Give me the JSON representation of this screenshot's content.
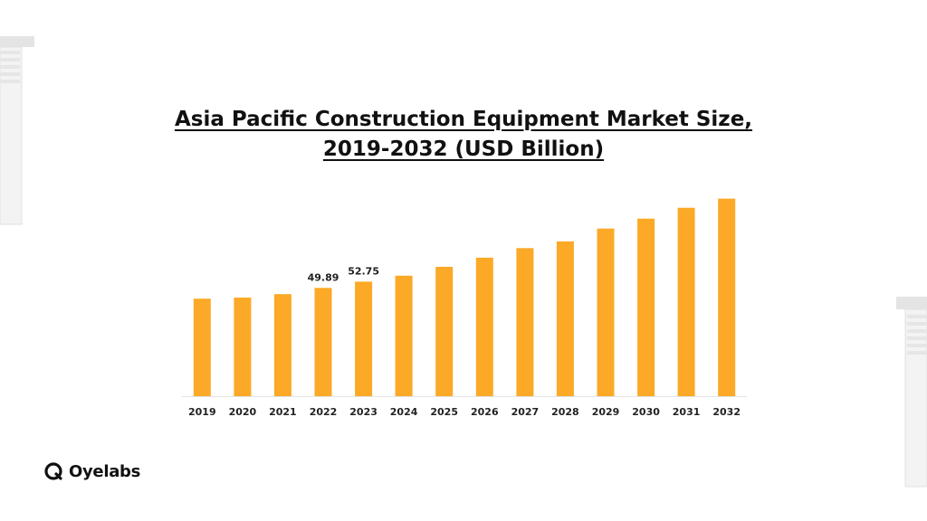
{
  "chart_data": {
    "type": "bar",
    "title_line1": "Asia Pacific Construction Equipment Market Size,",
    "title_line2": "2019-2032 (USD Billion)",
    "categories": [
      "2019",
      "2020",
      "2021",
      "2022",
      "2023",
      "2024",
      "2025",
      "2026",
      "2027",
      "2028",
      "2029",
      "2030",
      "2031",
      "2032"
    ],
    "values": [
      44.9,
      45.4,
      47.0,
      49.89,
      52.75,
      55.5,
      59.6,
      63.8,
      68.2,
      71.3,
      77.2,
      81.8,
      86.8,
      91.0
    ],
    "data_labels": {
      "3": "49.89",
      "4": "52.75"
    },
    "ylim": [
      0,
      100
    ],
    "bar_color": "#FBA926",
    "grid": false,
    "legend": "none"
  },
  "brand": {
    "name": "Oyelabs"
  }
}
